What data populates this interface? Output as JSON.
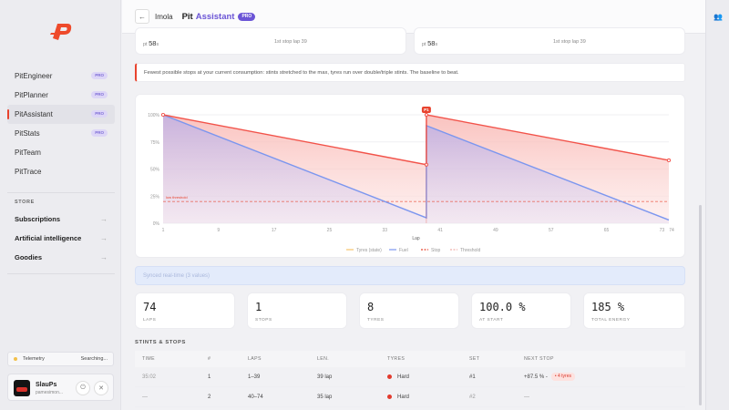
{
  "sidebar": {
    "nav": [
      {
        "label": "PitEngineer",
        "badge": "PRO"
      },
      {
        "label": "PitPlanner",
        "badge": "PRO"
      },
      {
        "label": "PitAssistant",
        "badge": "PRO"
      },
      {
        "label": "PitStats",
        "badge": "PRO"
      },
      {
        "label": "PitTeam",
        "badge": ""
      },
      {
        "label": "PitTrace",
        "badge": ""
      }
    ],
    "store_title": "STORE",
    "store": [
      {
        "label": "Subscriptions"
      },
      {
        "label": "Artificial intelligence"
      },
      {
        "label": "Goodies"
      }
    ],
    "telemetry": {
      "label": "Telemetry",
      "status": "Searching..."
    },
    "user": {
      "name": "SlauPs",
      "sub": "pamesimon..."
    }
  },
  "header": {
    "track": "Imola",
    "title_a": "Pit",
    "title_b": "Assistant",
    "badge": "PRO"
  },
  "prev_cards": [
    {
      "value": "58",
      "prefix": "pt",
      "unit": "s",
      "right": "1st stop lap 39"
    },
    {
      "value": "58",
      "prefix": "pt",
      "unit": "s",
      "right": "1st stop lap 39"
    }
  ],
  "note": "Fewest possible stops at your current consumption: stints stretched to the max, tyres run over double/triple stints. The baseline to beat.",
  "info_bar": "Synced real-time (3 values)",
  "stats": [
    {
      "value": "74",
      "label": "LAPS"
    },
    {
      "value": "1",
      "label": "STOPS"
    },
    {
      "value": "8",
      "label": "TYRES"
    },
    {
      "value": "100.0 %",
      "label": "AT START"
    },
    {
      "value": "185 %",
      "label": "TOTAL ENERGY"
    }
  ],
  "stints": {
    "title": "STINTS & STOPS",
    "headers": [
      "TIME",
      "#",
      "LAPS",
      "LEN.",
      "TYRES",
      "SET",
      "NEXT STOP"
    ],
    "rows": [
      {
        "time": "35:02",
        "num": "1",
        "laps": "1–39",
        "len": "39 lap",
        "tyre": "Hard",
        "set": "#1",
        "next": "+87.5 % -",
        "next_badge": "4 tyres"
      },
      {
        "time": "—",
        "num": "2",
        "laps": "40–74",
        "len": "35 lap",
        "tyre": "Hard",
        "set": "#2",
        "next": "—",
        "next_badge": ""
      }
    ]
  },
  "colors": {
    "accent": "#6b55d6",
    "brand": "#e8432e",
    "tyres": "#f2534a",
    "fuel": "#7b96ef",
    "threshold": "#e8432e"
  },
  "chart_data": {
    "type": "line",
    "xlabel": "Lap",
    "x_ticks": [
      "1",
      "9",
      "17",
      "25",
      "33",
      "41",
      "49",
      "57",
      "65",
      "73"
    ],
    "x_tick_suffix": "74",
    "y_ticks": [
      "100%",
      "75%",
      "50%",
      "25%",
      "0%"
    ],
    "xlim": [
      1,
      74
    ],
    "ylim": [
      0,
      100
    ],
    "series": [
      {
        "name": "Tyres (state)",
        "color": "#f2534a",
        "points": [
          [
            1,
            100
          ],
          [
            39,
            54
          ],
          [
            39,
            100
          ],
          [
            74,
            58
          ]
        ]
      },
      {
        "name": "Fuel",
        "color": "#7b96ef",
        "points": [
          [
            1,
            100
          ],
          [
            39,
            5
          ],
          [
            39,
            90
          ],
          [
            74,
            3
          ]
        ]
      }
    ],
    "threshold": {
      "name": "Threshold",
      "value": 20,
      "label": "low threshold"
    },
    "stop": {
      "name": "Stop",
      "lap": 39,
      "label": "P1"
    },
    "legend": [
      "Tyres (state)",
      "Fuel",
      "Stop",
      "Threshold"
    ],
    "legend_position": "bottom"
  }
}
